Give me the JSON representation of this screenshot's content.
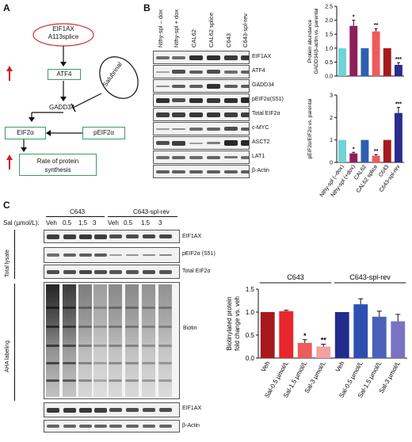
{
  "panel_labels": {
    "a": "A",
    "b": "B",
    "c": "C"
  },
  "panel_a": {
    "eif1ax_line1": "EIF1AX",
    "eif1ax_line2": "A113splice",
    "atf4": "ATF4",
    "salubrinal": "Salubrinal",
    "gadd34": "GADD34",
    "eif2a": "EIF2α",
    "peif2a": "pEIF2α",
    "rate_line1": "Rate of protein",
    "rate_line2": "synthesis"
  },
  "panel_b": {
    "lanes": [
      "Nthy-spl – dox",
      "Nthy-spl + dox",
      "CAL62",
      "CAL62 splice",
      "C643",
      "C643-spl-rev"
    ],
    "proteins": [
      "EIF1AX",
      "ATF4",
      "GADD34",
      "pEIF2α(S51)",
      "Total EIF2α",
      "c-MYC",
      "ASCT2",
      "LAT1",
      "β-Actin"
    ],
    "colors": [
      "#6fd3d8",
      "#8e1f5c",
      "#2f5fb3",
      "#ef5b5b",
      "#a7191d",
      "#2a2c8e"
    ]
  },
  "panel_c": {
    "groups": [
      "C643",
      "C643-spl-rev"
    ],
    "sal_label": "Sal (µmol/L):",
    "doses": [
      "Veh",
      "0.5",
      "1.5",
      "3",
      "Veh",
      "0.5",
      "1.5",
      "3"
    ],
    "total_lysate": "Total lysate",
    "aha_labeling": "AHA labeling",
    "blot_labels_top": [
      "EIF1AX",
      "pEIF2α (S51)",
      "Total EIF2α"
    ],
    "biotin": "Biotin",
    "blot_labels_bottom": [
      "EIF1AX",
      "β-Actin"
    ]
  },
  "chart_data": [
    {
      "type": "bar",
      "title": "",
      "ylabel": "Protein abundance GADD34/β-actin vs. parental",
      "categories": [
        "Nthy-spl (–dox)",
        "Nthy-spl (+dox)",
        "CAL62",
        "CAL62 splice",
        "C643",
        "C643-spl-rev"
      ],
      "values": [
        1.0,
        1.8,
        1.0,
        1.6,
        1.0,
        0.4
      ],
      "errors": [
        0,
        0.2,
        0,
        0.1,
        0,
        0.08
      ],
      "significance": [
        "",
        "*",
        "",
        "**",
        "",
        "***"
      ],
      "ylim": [
        0,
        2.5
      ],
      "yticks": [
        "0.0",
        "0.5",
        "1.0",
        "1.5",
        "2.0",
        "2.5"
      ]
    },
    {
      "type": "bar",
      "title": "",
      "ylabel": "pEIF2α/EIF2α vs. parental",
      "categories": [
        "Nthy-spl (–dox)",
        "Nthy-spl (+dox)",
        "CAL62",
        "CAL62 splice",
        "C643",
        "C643-spl-rev"
      ],
      "values": [
        1.0,
        0.4,
        1.0,
        0.3,
        1.0,
        2.2
      ],
      "errors": [
        0,
        0.05,
        0,
        0.05,
        0,
        0.25
      ],
      "significance": [
        "",
        "*",
        "",
        "**",
        "",
        "***"
      ],
      "ylim": [
        0,
        3
      ],
      "yticks": [
        "0",
        "1",
        "2",
        "3"
      ]
    },
    {
      "type": "bar",
      "title": "",
      "ylabel": "Biotinylated protein fold change vs. veh",
      "groups": [
        "C643",
        "C643-spl-rev"
      ],
      "categories": [
        "Veh",
        "Sal-0.5 µmol/L",
        "Sal-1.5 µmol/L",
        "Sal-3 µmol/L",
        "Veh",
        "Sal-0.5 µmol/L",
        "Sal-1.5 µmol/L",
        "Sal-3 µmol/L"
      ],
      "values": [
        1.0,
        1.02,
        0.33,
        0.25,
        1.0,
        1.17,
        0.9,
        0.8
      ],
      "errors": [
        0,
        0.02,
        0.07,
        0.05,
        0,
        0.12,
        0.12,
        0.15
      ],
      "significance": [
        "",
        "",
        "*",
        "**",
        "",
        "",
        "",
        ""
      ],
      "colors": [
        "#a7191d",
        "#e8262b",
        "#ef5b5b",
        "#f4a0a0",
        "#232b8e",
        "#2f4fb0",
        "#4a62b8",
        "#7a72c2"
      ],
      "ylim": [
        0,
        1.5
      ],
      "yticks": [
        "0.0",
        "0.5",
        "1.0",
        "1.5"
      ]
    }
  ]
}
